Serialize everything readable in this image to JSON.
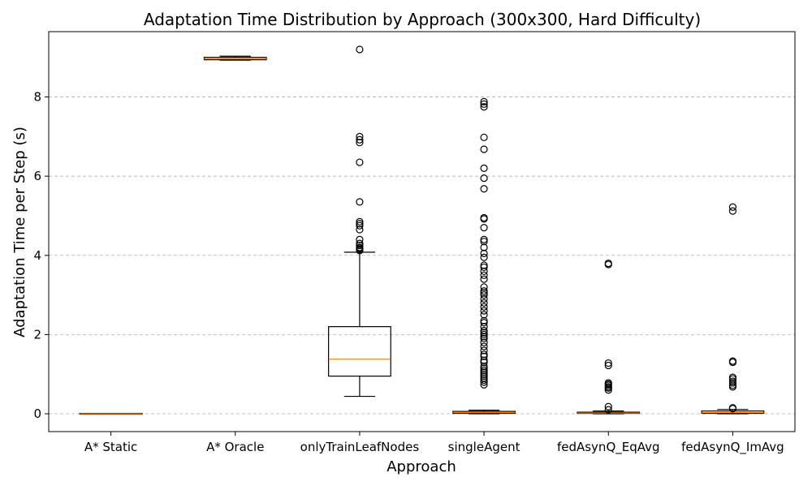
{
  "chart_data": {
    "type": "box",
    "title": "Adaptation Time Distribution by Approach (300x300, Hard Difficulty)",
    "xlabel": "Approach",
    "ylabel": "Adaptation Time per Step (s)",
    "ylim": [
      -0.45,
      9.65
    ],
    "yticks": [
      0,
      2,
      4,
      6,
      8
    ],
    "grid": "y-dashed",
    "colors": {
      "box": "#000000",
      "median": "#ff7f0e",
      "grid": "#b0b0b0"
    },
    "categories": [
      "A* Static",
      "A* Oracle",
      "onlyTrainLeafNodes",
      "singleAgent",
      "fedAsynQ_EqAvg",
      "fedAsynQ_ImAvg"
    ],
    "boxes": [
      {
        "name": "A* Static",
        "whislo": 0.0,
        "q1": 0.0,
        "med": 0.0,
        "q3": 0.01,
        "whishi": 0.01,
        "fliers": []
      },
      {
        "name": "A* Oracle",
        "whislo": 8.93,
        "q1": 8.94,
        "med": 8.97,
        "q3": 9.0,
        "whishi": 9.03,
        "fliers": []
      },
      {
        "name": "onlyTrainLeafNodes",
        "whislo": 0.44,
        "q1": 0.95,
        "med": 1.38,
        "q3": 2.2,
        "whishi": 4.08,
        "fliers": [
          4.12,
          4.15,
          4.18,
          4.2,
          4.25,
          4.3,
          4.4,
          4.65,
          4.75,
          4.8,
          4.85,
          5.35,
          6.35,
          6.85,
          6.92,
          7.0,
          9.2
        ]
      },
      {
        "name": "singleAgent",
        "whislo": 0.0,
        "q1": 0.01,
        "med": 0.03,
        "q3": 0.06,
        "whishi": 0.09,
        "fliers": [
          0.73,
          0.8,
          0.85,
          0.9,
          0.95,
          1.0,
          1.05,
          1.1,
          1.15,
          1.2,
          1.3,
          1.35,
          1.45,
          1.5,
          1.6,
          1.7,
          1.8,
          1.9,
          1.95,
          2.0,
          2.05,
          2.1,
          2.2,
          2.3,
          2.35,
          2.5,
          2.6,
          2.7,
          2.8,
          2.9,
          3.0,
          3.05,
          3.1,
          3.2,
          3.4,
          3.5,
          3.6,
          3.7,
          3.75,
          3.95,
          4.05,
          4.2,
          4.35,
          4.4,
          4.7,
          4.92,
          4.95,
          5.68,
          5.95,
          6.2,
          6.68,
          6.98,
          7.75,
          7.82,
          7.88
        ]
      },
      {
        "name": "fedAsynQ_EqAvg",
        "whislo": 0.0,
        "q1": 0.01,
        "med": 0.02,
        "q3": 0.04,
        "whishi": 0.07,
        "fliers": [
          0.1,
          0.18,
          0.6,
          0.65,
          0.68,
          0.72,
          0.75,
          0.78,
          1.22,
          1.28,
          3.77,
          3.8
        ]
      },
      {
        "name": "fedAsynQ_ImAvg",
        "whislo": 0.0,
        "q1": 0.01,
        "med": 0.03,
        "q3": 0.07,
        "whishi": 0.11,
        "fliers": [
          0.13,
          0.15,
          0.68,
          0.72,
          0.78,
          0.82,
          0.88,
          0.92,
          1.3,
          1.33,
          5.12,
          5.22
        ]
      }
    ]
  }
}
